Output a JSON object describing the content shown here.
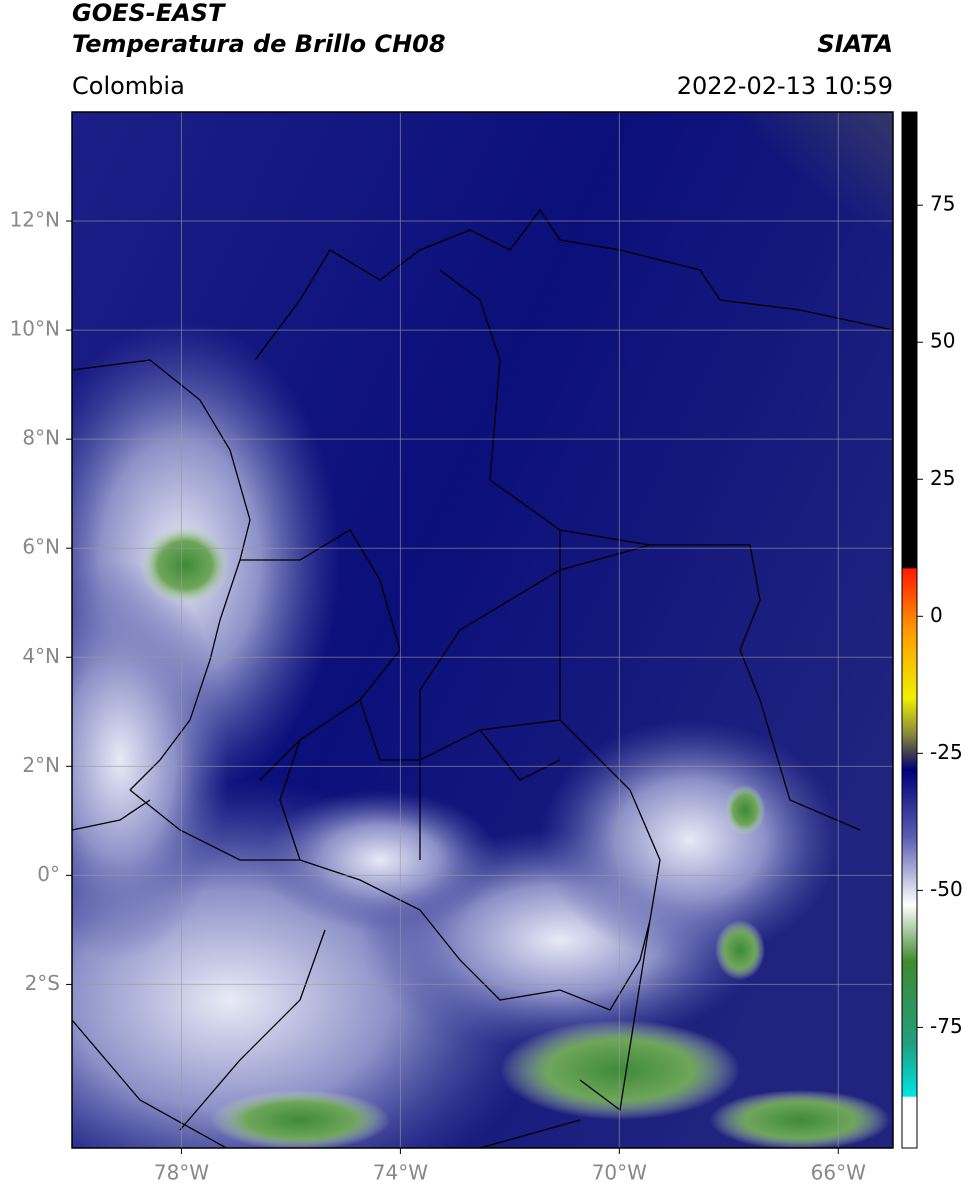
{
  "header": {
    "title_line1": "GOES-EAST",
    "title_line2": "Temperatura de Brillo CH08",
    "source": "SIATA",
    "region": "Colombia",
    "datetime": "2022-02-13 10:59"
  },
  "map": {
    "xlim": [
      -80,
      -65
    ],
    "ylim": [
      -5,
      14
    ],
    "xticks": [
      {
        "value": -78,
        "label": "78°W"
      },
      {
        "value": -74,
        "label": "74°W"
      },
      {
        "value": -70,
        "label": "70°W"
      },
      {
        "value": -66,
        "label": "66°W"
      }
    ],
    "yticks": [
      {
        "value": 12,
        "label": "12°N"
      },
      {
        "value": 10,
        "label": "10°N"
      },
      {
        "value": 8,
        "label": "8°N"
      },
      {
        "value": 6,
        "label": "6°N"
      },
      {
        "value": 4,
        "label": "4°N"
      },
      {
        "value": 2,
        "label": "2°N"
      },
      {
        "value": 0,
        "label": "0°"
      },
      {
        "value": -2,
        "label": "2°S"
      }
    ],
    "grid": true
  },
  "colorbar": {
    "lim": [
      -97,
      92
    ],
    "ticks": [
      75,
      50,
      25,
      0,
      -25,
      -50,
      -75
    ]
  }
}
